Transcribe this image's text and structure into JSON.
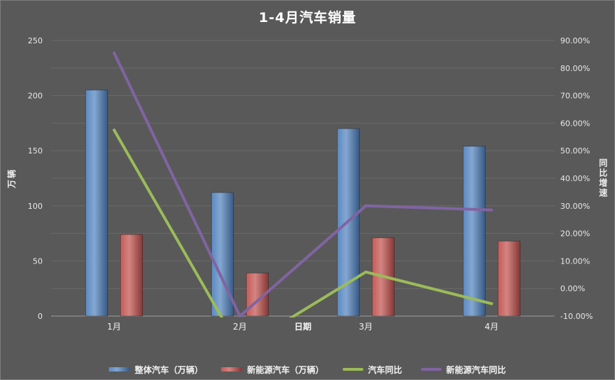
{
  "chart_data": {
    "type": "combo",
    "title": "1-4月汽车销量",
    "categories": [
      "1月",
      "2月",
      "3月",
      "4月"
    ],
    "x_axis": {
      "title": "日期"
    },
    "left_axis": {
      "title": "万辆",
      "min": 0,
      "max": 250,
      "step": 50
    },
    "right_axis": {
      "title": "同比增速",
      "min": -10,
      "max": 90,
      "step": 10,
      "format": "percent-2dp",
      "tick_labels": [
        "-10.00%",
        "0.00%",
        "10.00%",
        "20.00%",
        "30.00%",
        "40.00%",
        "50.00%",
        "60.00%",
        "70.00%",
        "80.00%",
        "90.00%"
      ]
    },
    "series": [
      {
        "name": "整体汽车（万辆）",
        "type": "bar",
        "axis": "left",
        "color": "#4F81BD",
        "values": [
          205,
          112,
          170,
          154
        ]
      },
      {
        "name": "新能源汽车（万辆）",
        "type": "bar",
        "axis": "left",
        "color": "#C0504D",
        "values": [
          74,
          39,
          71,
          68
        ]
      },
      {
        "name": "汽车同比",
        "type": "line",
        "axis": "right",
        "unit": "%",
        "color": "#9BBB59",
        "values": [
          57.5,
          -22,
          6,
          -5.5
        ]
      },
      {
        "name": "新能源汽车同比",
        "type": "line",
        "axis": "right",
        "unit": "%",
        "color": "#8064A2",
        "values": [
          85.5,
          -10,
          30,
          28.5
        ]
      }
    ],
    "legend_position": "bottom",
    "grid": true,
    "background_color": "#595959",
    "gridline_color": "#6b6b6b",
    "text_color": "#e8e8e8"
  }
}
